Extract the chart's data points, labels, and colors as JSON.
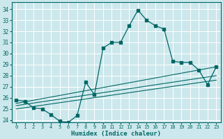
{
  "xlabel": "Humidex (Indice chaleur)",
  "bg_color": "#cce8ec",
  "grid_color": "#ffffff",
  "line_color": "#006666",
  "xlim": [
    -0.5,
    23.5
  ],
  "ylim": [
    23.8,
    34.6
  ],
  "yticks": [
    24,
    25,
    26,
    27,
    28,
    29,
    30,
    31,
    32,
    33,
    34
  ],
  "xticks": [
    0,
    1,
    2,
    3,
    4,
    5,
    6,
    7,
    8,
    9,
    10,
    11,
    12,
    13,
    14,
    15,
    16,
    17,
    18,
    19,
    20,
    21,
    22,
    23
  ],
  "main_line_x": [
    0,
    1,
    2,
    3,
    4,
    5,
    6,
    7,
    8,
    9,
    10,
    11,
    12,
    13,
    14,
    15,
    16,
    17,
    18,
    19,
    20,
    21,
    22,
    23
  ],
  "main_line_y": [
    25.8,
    25.7,
    25.1,
    25.0,
    24.5,
    23.9,
    23.8,
    24.4,
    27.4,
    26.3,
    30.5,
    31.0,
    31.0,
    32.5,
    33.9,
    33.0,
    32.5,
    32.2,
    29.3,
    29.2,
    29.2,
    28.5,
    27.2,
    28.8
  ],
  "line2_x": [
    0,
    23
  ],
  "line2_y": [
    25.5,
    28.8
  ],
  "line3_x": [
    0,
    23
  ],
  "line3_y": [
    25.3,
    28.0
  ],
  "line4_x": [
    0,
    23
  ],
  "line4_y": [
    25.0,
    27.6
  ]
}
